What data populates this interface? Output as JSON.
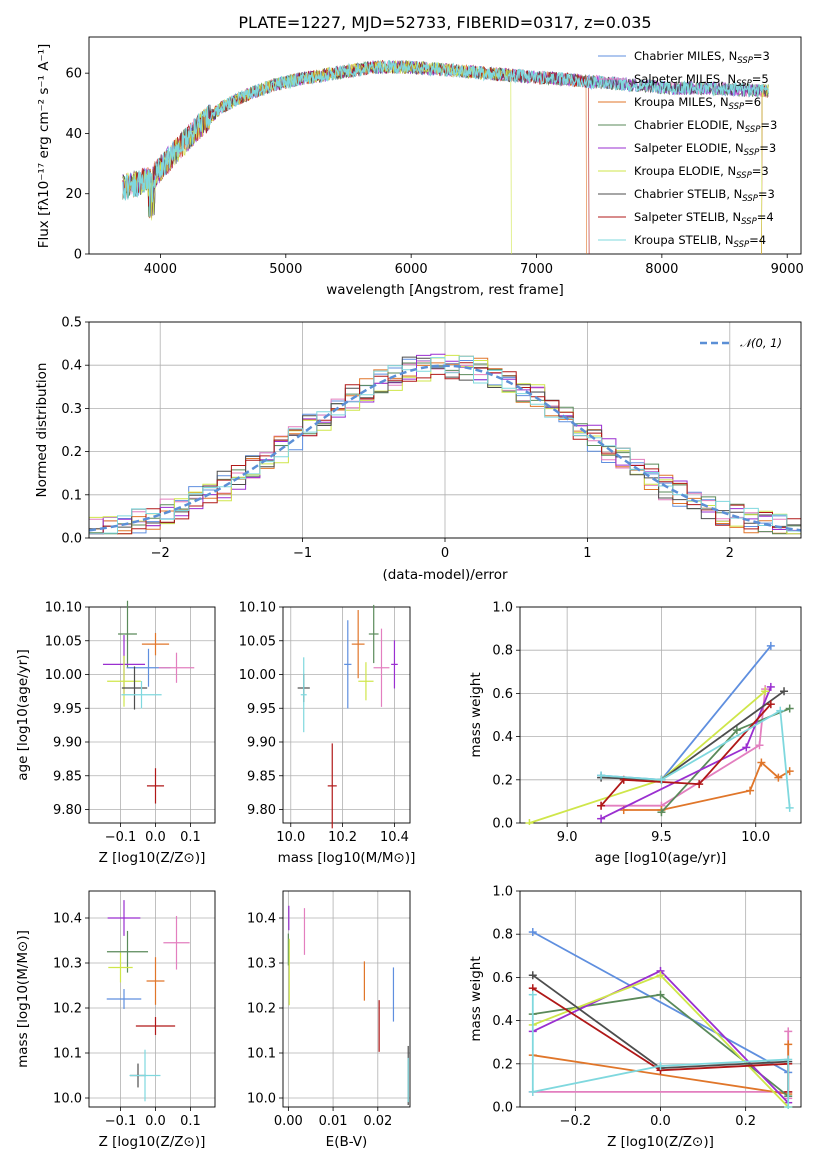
{
  "colors": {
    "chabrier_miles": "#5f8fdf",
    "salpeter_miles": "#e37fbf",
    "kroupa_miles": "#e0762a",
    "chabrier_elodie": "#5a8a5a",
    "salpeter_elodie": "#9a2fd0",
    "kroupa_elodie": "#cfe64a",
    "chabrier_stelib": "#4d4d4d",
    "salpeter_stelib": "#b01818",
    "kroupa_stelib": "#7fd8de",
    "normal_curve": "#5b8fd6"
  },
  "chart_data": [
    {
      "type": "line",
      "title": "PLATE=1227, MJD=52733, FIBERID=0317, z=0.035",
      "xlabel": "wavelength [Angstrom, rest frame]",
      "ylabel": "Flux [fλ10⁻¹⁷ erg cm⁻² s⁻¹ A⁻¹]",
      "xlim": [
        3430,
        9110
      ],
      "ylim": [
        0,
        72
      ],
      "xticks": [
        "4000",
        "5000",
        "6000",
        "7000",
        "8000",
        "9000"
      ],
      "yticks": [
        "0",
        "20",
        "40",
        "60"
      ],
      "legend_position": "top-right",
      "continuum": {
        "x": [
          3700,
          3850,
          3950,
          4100,
          4300,
          4500,
          4700,
          4900,
          5100,
          5400,
          5700,
          6000,
          6300,
          6600,
          6900,
          7200,
          7500,
          7800,
          8100,
          8400,
          8850
        ],
        "y": [
          22,
          24,
          26,
          33,
          42,
          49,
          53,
          56,
          58,
          60,
          62,
          62,
          61,
          60,
          59,
          58,
          57,
          56,
          55,
          55,
          54
        ]
      },
      "series": [
        {
          "name": "Chabrier MILES, N_SSP=3"
        },
        {
          "name": "Salpeter MILES, N_SSP=5"
        },
        {
          "name": "Kroupa MILES, N_SSP=6"
        },
        {
          "name": "Chabrier ELODIE, N_SSP=3"
        },
        {
          "name": "Salpeter ELODIE, N_SSP=3"
        },
        {
          "name": "Kroupa ELODIE, N_SSP=3"
        },
        {
          "name": "Chabrier STELIB, N_SSP=3"
        },
        {
          "name": "Salpeter STELIB, N_SSP=4"
        },
        {
          "name": "Kroupa STELIB, N_SSP=4"
        }
      ],
      "legend": [
        {
          "prefix": "Chabrier MILES, N",
          "sub": "SSP",
          "suffix": "=3"
        },
        {
          "prefix": "Salpeter MILES, N",
          "sub": "SSP",
          "suffix": "=5"
        },
        {
          "prefix": "Kroupa MILES, N",
          "sub": "SSP",
          "suffix": "=6"
        },
        {
          "prefix": "Chabrier ELODIE, N",
          "sub": "SSP",
          "suffix": "=3"
        },
        {
          "prefix": "Salpeter ELODIE, N",
          "sub": "SSP",
          "suffix": "=3"
        },
        {
          "prefix": "Kroupa ELODIE, N",
          "sub": "SSP",
          "suffix": "=3"
        },
        {
          "prefix": "Chabrier STELIB, N",
          "sub": "SSP",
          "suffix": "=3"
        },
        {
          "prefix": "Salpeter STELIB, N",
          "sub": "SSP",
          "suffix": "=4"
        },
        {
          "prefix": "Kroupa STELIB, N",
          "sub": "SSP",
          "suffix": "=4"
        }
      ],
      "drops": [
        {
          "series": "Kroupa ELODIE",
          "x": 6800
        },
        {
          "series": "Salpeter STELIB",
          "x": 7420
        },
        {
          "series": "Kroupa MILES",
          "x": 7400
        }
      ]
    },
    {
      "type": "histogram",
      "xlabel": "(data-model)/error",
      "ylabel": "Normed distribution",
      "xlim": [
        -2.5,
        2.5
      ],
      "ylim": [
        0,
        0.5
      ],
      "xticks": [
        "−2",
        "−1",
        "0",
        "1",
        "2"
      ],
      "yticks": [
        "0.0",
        "0.1",
        "0.2",
        "0.3",
        "0.4",
        "0.5"
      ],
      "bin_width": 0.1,
      "overlay": {
        "name": "𝒩(0, 1)",
        "mean": 0,
        "sigma": 1
      },
      "legend_position": "top-right"
    },
    {
      "type": "scatter",
      "xlabel": "Z [log10(Z/Z⊙)]",
      "ylabel": "age  [log10(age/yr)]",
      "xlim": [
        -0.19,
        0.17
      ],
      "ylim": [
        9.78,
        10.1
      ],
      "xticks": [
        "−0.1",
        "0.0",
        "0.1"
      ],
      "yticks": [
        "9.80",
        "9.85",
        "9.90",
        "9.95",
        "10.00",
        "10.05",
        "10.10"
      ],
      "points": [
        {
          "series": "Chabrier MILES",
          "x": -0.02,
          "y": 10.01
        },
        {
          "series": "Salpeter MILES",
          "x": 0.06,
          "y": 10.01
        },
        {
          "series": "Kroupa MILES",
          "x": 0.0,
          "y": 10.045
        },
        {
          "series": "Chabrier ELODIE",
          "x": -0.08,
          "y": 10.06
        },
        {
          "series": "Salpeter ELODIE",
          "x": -0.09,
          "y": 10.015
        },
        {
          "series": "Kroupa ELODIE",
          "x": -0.09,
          "y": 9.99
        },
        {
          "series": "Chabrier STELIB",
          "x": -0.06,
          "y": 9.98
        },
        {
          "series": "Salpeter STELIB",
          "x": 0.0,
          "y": 9.835
        },
        {
          "series": "Kroupa STELIB",
          "x": -0.04,
          "y": 9.97
        }
      ]
    },
    {
      "type": "scatter",
      "xlabel": "mass [log10(M/M⊙)]",
      "ylabel": "",
      "xlim": [
        9.97,
        10.46
      ],
      "ylim": [
        9.78,
        10.1
      ],
      "xticks": [
        "10.0",
        "10.2",
        "10.4"
      ],
      "yticks": [
        "9.80",
        "9.85",
        "9.90",
        "9.95",
        "10.00",
        "10.05",
        "10.10"
      ],
      "points": [
        {
          "series": "Chabrier MILES",
          "x": 10.22,
          "y": 10.015
        },
        {
          "series": "Salpeter MILES",
          "x": 10.35,
          "y": 10.01
        },
        {
          "series": "Kroupa MILES",
          "x": 10.26,
          "y": 10.045
        },
        {
          "series": "Chabrier ELODIE",
          "x": 10.32,
          "y": 10.06
        },
        {
          "series": "Salpeter ELODIE",
          "x": 10.4,
          "y": 10.015
        },
        {
          "series": "Kroupa ELODIE",
          "x": 10.29,
          "y": 9.99
        },
        {
          "series": "Chabrier STELIB",
          "x": 10.05,
          "y": 9.98
        },
        {
          "series": "Salpeter STELIB",
          "x": 10.16,
          "y": 9.835
        },
        {
          "series": "Kroupa STELIB",
          "x": 10.05,
          "y": 9.97
        }
      ]
    },
    {
      "type": "line",
      "xlabel": "age  [log10(age/yr)]",
      "ylabel": "mass weight",
      "xlim": [
        8.75,
        10.24
      ],
      "ylim": [
        0,
        1
      ],
      "xticks": [
        "9.0",
        "9.5",
        "10.0"
      ],
      "yticks": [
        "0.0",
        "0.2",
        "0.4",
        "0.6",
        "0.8",
        "1.0"
      ],
      "series": [
        {
          "name": "Chabrier MILES",
          "x": [
            9.18,
            9.5,
            10.08
          ],
          "y": [
            0.22,
            0.2,
            0.82
          ]
        },
        {
          "name": "Salpeter MILES",
          "x": [
            9.18,
            9.5,
            10.02,
            10.05
          ],
          "y": [
            0.08,
            0.08,
            0.36,
            0.62
          ]
        },
        {
          "name": "Kroupa MILES",
          "x": [
            9.3,
            9.5,
            9.97,
            10.03,
            10.12,
            10.18
          ],
          "y": [
            0.06,
            0.06,
            0.15,
            0.28,
            0.21,
            0.24
          ]
        },
        {
          "name": "Chabrier ELODIE",
          "x": [
            9.5,
            9.9,
            10.18
          ],
          "y": [
            0.05,
            0.43,
            0.53
          ]
        },
        {
          "name": "Salpeter ELODIE",
          "x": [
            9.18,
            9.95,
            10.08
          ],
          "y": [
            0.02,
            0.35,
            0.63
          ]
        },
        {
          "name": "Kroupa ELODIE",
          "x": [
            8.8,
            9.5,
            10.05
          ],
          "y": [
            0.0,
            0.2,
            0.61
          ]
        },
        {
          "name": "Chabrier STELIB",
          "x": [
            9.18,
            9.5,
            10.15
          ],
          "y": [
            0.21,
            0.2,
            0.61
          ]
        },
        {
          "name": "Salpeter STELIB",
          "x": [
            9.18,
            9.3,
            9.7,
            10.08
          ],
          "y": [
            0.08,
            0.2,
            0.18,
            0.55
          ]
        },
        {
          "name": "Kroupa STELIB",
          "x": [
            9.18,
            9.5,
            10.13,
            10.18
          ],
          "y": [
            0.22,
            0.2,
            0.52,
            0.07
          ]
        }
      ]
    },
    {
      "type": "scatter",
      "xlabel": "Z [log10(Z/Z⊙)]",
      "ylabel": "mass [log10(M/M⊙)]",
      "xlim": [
        -0.19,
        0.17
      ],
      "ylim": [
        9.98,
        10.46
      ],
      "xticks": [
        "−0.1",
        "0.0",
        "0.1"
      ],
      "yticks": [
        "10.0",
        "10.1",
        "10.2",
        "10.3",
        "10.4"
      ],
      "points": [
        {
          "series": "Chabrier MILES",
          "x": -0.09,
          "y": 10.22
        },
        {
          "series": "Salpeter MILES",
          "x": 0.06,
          "y": 10.345
        },
        {
          "series": "Kroupa MILES",
          "x": 0.0,
          "y": 10.26
        },
        {
          "series": "Chabrier ELODIE",
          "x": -0.08,
          "y": 10.325
        },
        {
          "series": "Salpeter ELODIE",
          "x": -0.09,
          "y": 10.4
        },
        {
          "series": "Kroupa ELODIE",
          "x": -0.1,
          "y": 10.29
        },
        {
          "series": "Chabrier STELIB",
          "x": -0.05,
          "y": 10.05
        },
        {
          "series": "Salpeter STELIB",
          "x": 0.0,
          "y": 10.16
        },
        {
          "series": "Kroupa STELIB",
          "x": -0.03,
          "y": 10.05
        }
      ]
    },
    {
      "type": "scatter",
      "xlabel": "E(B-V)",
      "ylabel": "",
      "xlim": [
        -0.0012,
        0.0272
      ],
      "ylim": [
        9.98,
        10.46
      ],
      "xticks": [
        "0.00",
        "0.01",
        "0.02"
      ],
      "yticks": [
        "10.0",
        "10.1",
        "10.2",
        "10.3",
        "10.4"
      ],
      "points": [
        {
          "series": "Chabrier MILES",
          "x": 0.0235,
          "y": 10.23
        },
        {
          "series": "Salpeter MILES",
          "x": 0.0036,
          "y": 10.37
        },
        {
          "series": "Kroupa MILES",
          "x": 0.017,
          "y": 10.26
        },
        {
          "series": "Chabrier ELODIE",
          "x": 0.0,
          "y": 10.33
        },
        {
          "series": "Salpeter ELODIE",
          "x": 0.0001,
          "y": 10.4
        },
        {
          "series": "Kroupa ELODIE",
          "x": 0.0002,
          "y": 10.28
        },
        {
          "series": "Chabrier STELIB",
          "x": 0.0268,
          "y": 10.05
        },
        {
          "series": "Salpeter STELIB",
          "x": 0.0203,
          "y": 10.16
        },
        {
          "series": "Kroupa STELIB",
          "x": 0.0268,
          "y": 10.04
        }
      ]
    },
    {
      "type": "line",
      "xlabel": "Z [log10(Z/Z⊙)]",
      "ylabel": "mass weight",
      "xlim": [
        -0.33,
        0.33
      ],
      "ylim": [
        0,
        1
      ],
      "xticks": [
        "−0.2",
        "0.0",
        "0.2"
      ],
      "yticks": [
        "0.0",
        "0.2",
        "0.4",
        "0.6",
        "0.8",
        "1.0"
      ],
      "series": [
        {
          "name": "Chabrier MILES",
          "x": [
            -0.3,
            0.3
          ],
          "y": [
            0.81,
            0.16
          ]
        },
        {
          "name": "Salpeter MILES",
          "x": [
            -0.3,
            0.3,
            0.3,
            0.3
          ],
          "y": [
            0.07,
            0.07,
            0.35,
            0.04
          ]
        },
        {
          "name": "Kroupa MILES",
          "x": [
            -0.3,
            0.3,
            0.3
          ],
          "y": [
            0.24,
            0.06,
            0.29
          ]
        },
        {
          "name": "Chabrier ELODIE",
          "x": [
            -0.3,
            0.0,
            0.3
          ],
          "y": [
            0.43,
            0.52,
            0.05
          ]
        },
        {
          "name": "Salpeter ELODIE",
          "x": [
            -0.3,
            0.0,
            0.3
          ],
          "y": [
            0.35,
            0.63,
            0.02
          ]
        },
        {
          "name": "Kroupa ELODIE",
          "x": [
            -0.3,
            0.0,
            0.3
          ],
          "y": [
            0.38,
            0.61,
            0.0
          ]
        },
        {
          "name": "Chabrier STELIB",
          "x": [
            -0.3,
            0.0,
            0.3
          ],
          "y": [
            0.61,
            0.18,
            0.21
          ]
        },
        {
          "name": "Salpeter STELIB",
          "x": [
            -0.3,
            0.0,
            0.3,
            0.3
          ],
          "y": [
            0.55,
            0.17,
            0.2,
            0.07
          ]
        },
        {
          "name": "Kroupa STELIB",
          "x": [
            -0.3,
            -0.3,
            0.0,
            0.3,
            0.3
          ],
          "y": [
            0.52,
            0.07,
            0.19,
            0.22,
            0.0
          ]
        }
      ]
    }
  ]
}
